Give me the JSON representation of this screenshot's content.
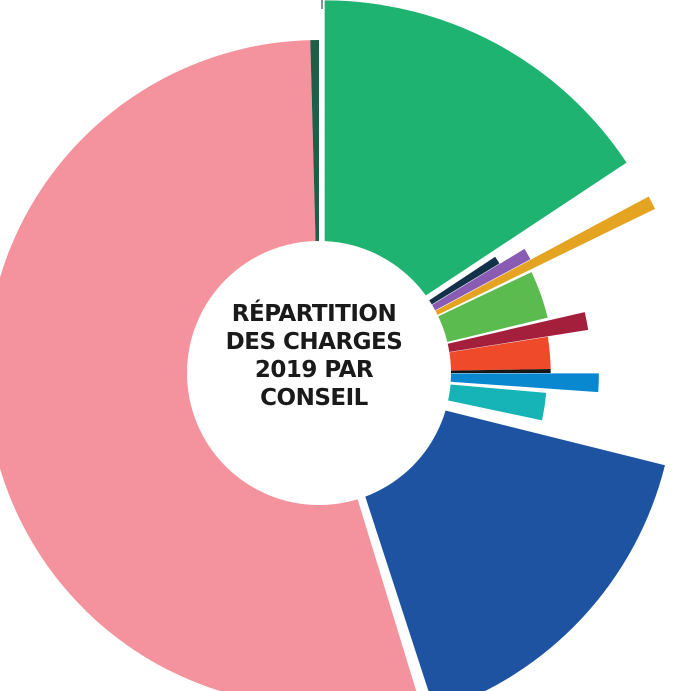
{
  "chart_data": {
    "type": "pie",
    "style": "exploded radial donut, slices vary in length and some are pulled out from the center",
    "title": "RÉPARTITION\nDES CHARGES\n2019 PAR\nCONSEIL",
    "start": "top",
    "direction": "clockwise",
    "slices": [
      {
        "color": "#1fb371",
        "start_deg": 0.0,
        "end_deg": 56.5,
        "radius_pct": 100,
        "pulled_out": true
      },
      {
        "color": "#13324a",
        "start_deg": 56.5,
        "end_deg": 58.8,
        "radius_pct": 55,
        "pulled_out": true
      },
      {
        "color": "#8a5bb3",
        "start_deg": 58.8,
        "end_deg": 61.8,
        "radius_pct": 63,
        "pulled_out": true
      },
      {
        "color": "#e4a321",
        "start_deg": 61.8,
        "end_deg": 64.0,
        "radius_pct": 100,
        "pulled_out": true
      },
      {
        "color": "#5cbb4e",
        "start_deg": 64.6,
        "end_deg": 76.4,
        "radius_pct": 65,
        "pulled_out": false
      },
      {
        "color": "#a41f3c",
        "start_deg": 77.0,
        "end_deg": 81.0,
        "radius_pct": 72,
        "pulled_out": true
      },
      {
        "color": "#ef4a2a",
        "start_deg": 81.0,
        "end_deg": 89.0,
        "radius_pct": 64,
        "pulled_out": false
      },
      {
        "color": "#161616",
        "start_deg": 89.0,
        "end_deg": 90.0,
        "radius_pct": 64,
        "pulled_out": false
      },
      {
        "color": "#0a88cf",
        "start_deg": 90.0,
        "end_deg": 94.0,
        "radius_pct": 74,
        "pulled_out": true
      },
      {
        "color": "#16b4b6",
        "start_deg": 95.0,
        "end_deg": 102.0,
        "radius_pct": 63,
        "pulled_out": false
      },
      {
        "color": "#1e53a1",
        "start_deg": 104.0,
        "end_deg": 162.0,
        "radius_pct": 96,
        "pulled_out": true
      },
      {
        "color": "#f4939d",
        "start_deg": 163.0,
        "end_deg": 358.5,
        "radius_pct": 92,
        "pulled_out": false
      },
      {
        "color": "#1d6045",
        "start_deg": 358.5,
        "end_deg": 360.0,
        "radius_pct": 92,
        "pulled_out": false
      }
    ],
    "inner_circle_color": "#ffffff",
    "legend": "none"
  }
}
